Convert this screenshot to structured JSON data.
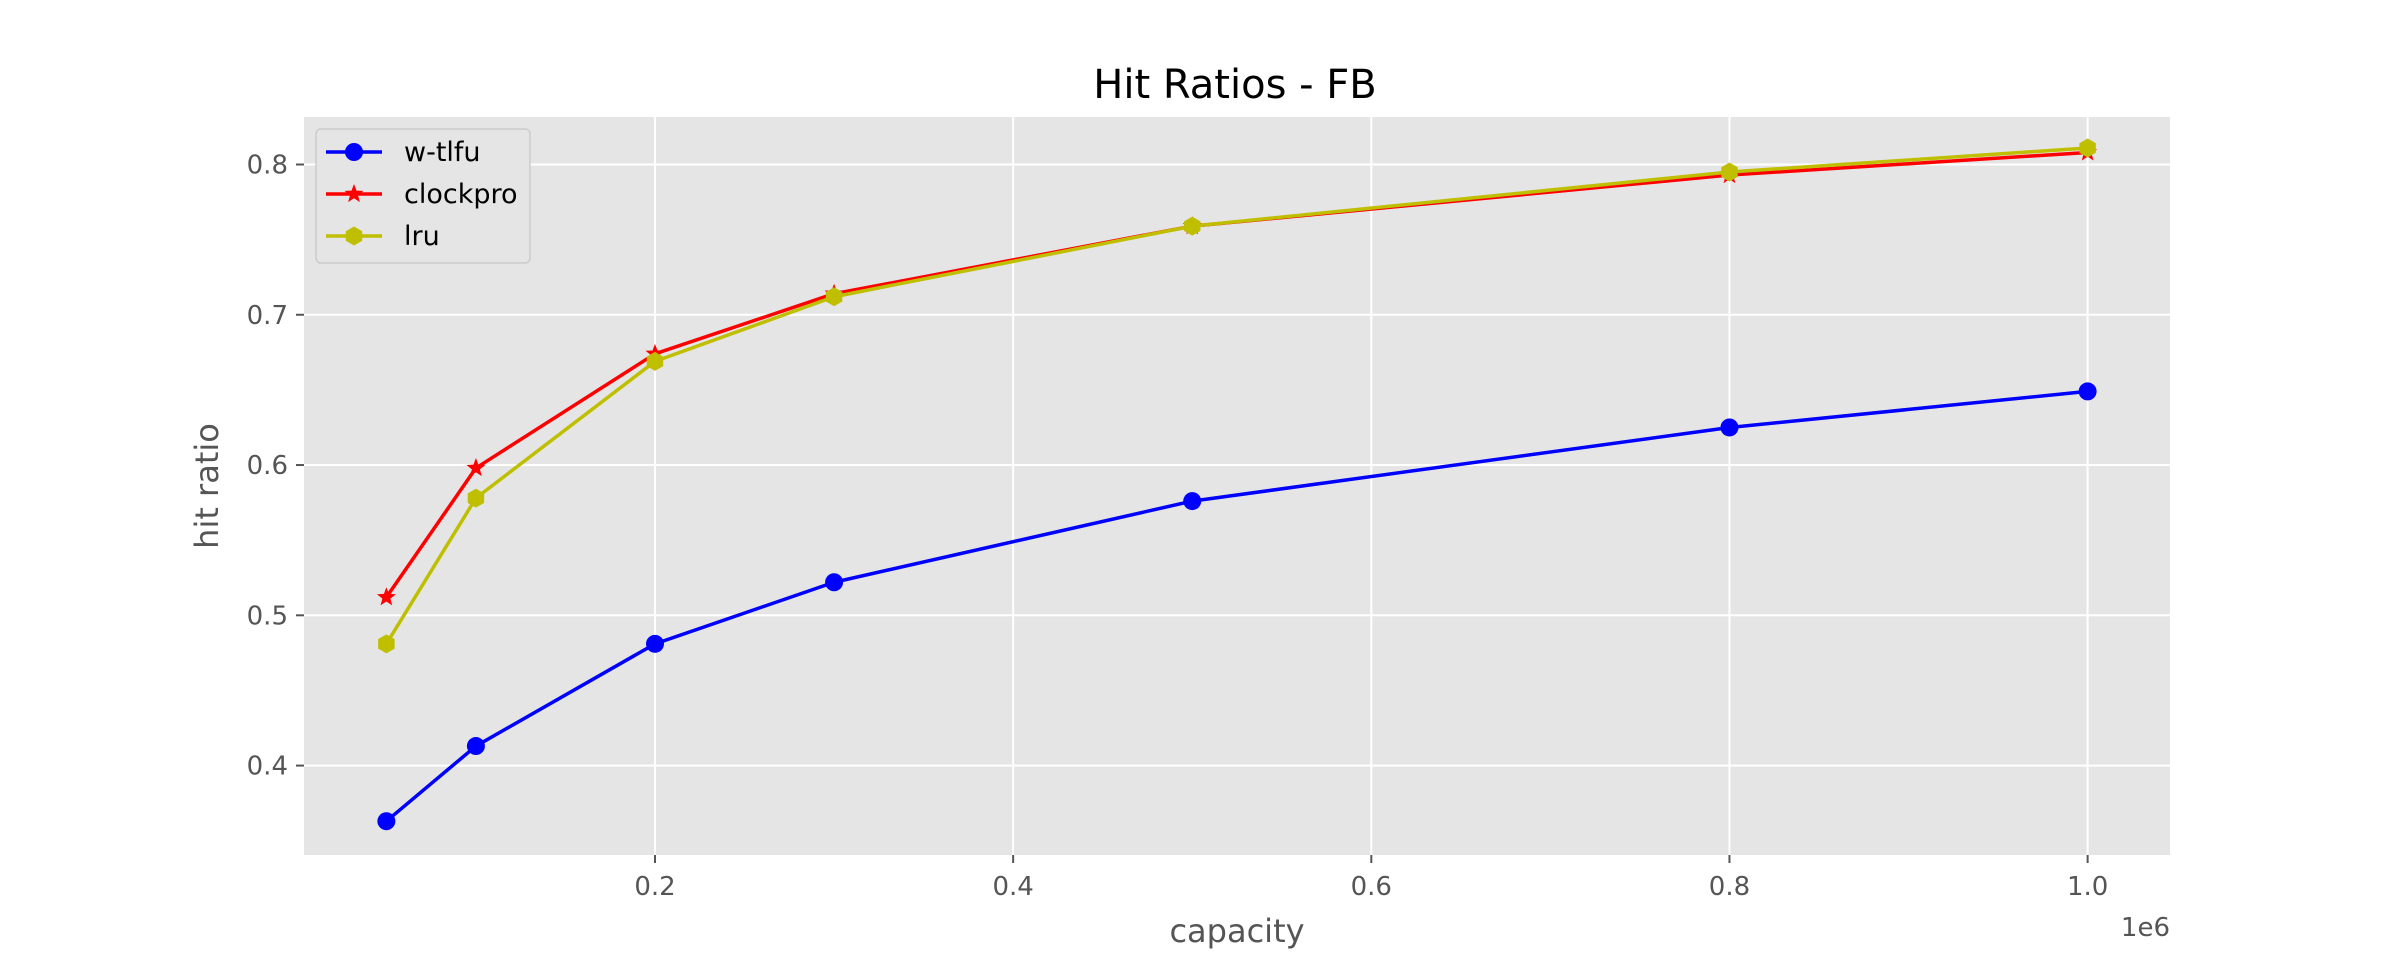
{
  "chart_data": {
    "type": "line",
    "title": "Hit Ratios - FB",
    "xlabel": "capacity",
    "ylabel": "hit ratio",
    "x_offset_label": "1e6",
    "x": [
      50000,
      100000,
      200000,
      300000,
      500000,
      800000,
      1000000
    ],
    "xlim": [
      4000,
      1046000
    ],
    "ylim": [
      0.3405,
      0.8316
    ],
    "x_ticks": [
      200000,
      400000,
      600000,
      800000,
      1000000
    ],
    "x_tick_labels": [
      "0.2",
      "0.4",
      "0.6",
      "0.8",
      "1.0"
    ],
    "y_ticks": [
      0.4,
      0.5,
      0.6,
      0.7,
      0.8
    ],
    "y_tick_labels": [
      "0.4",
      "0.5",
      "0.6",
      "0.7",
      "0.8"
    ],
    "grid": true,
    "legend_position": "top-left",
    "series": [
      {
        "name": "w-tlfu",
        "color": "#0000ff",
        "marker": "circle",
        "values": [
          0.363,
          0.413,
          0.481,
          0.522,
          0.576,
          0.625,
          0.649
        ]
      },
      {
        "name": "clockpro",
        "color": "#ff0000",
        "marker": "star",
        "values": [
          0.512,
          0.598,
          0.674,
          0.714,
          0.759,
          0.793,
          0.808
        ]
      },
      {
        "name": "lru",
        "color": "#bfbf00",
        "marker": "hexagon",
        "values": [
          0.481,
          0.578,
          0.669,
          0.712,
          0.759,
          0.795,
          0.811
        ]
      }
    ]
  }
}
